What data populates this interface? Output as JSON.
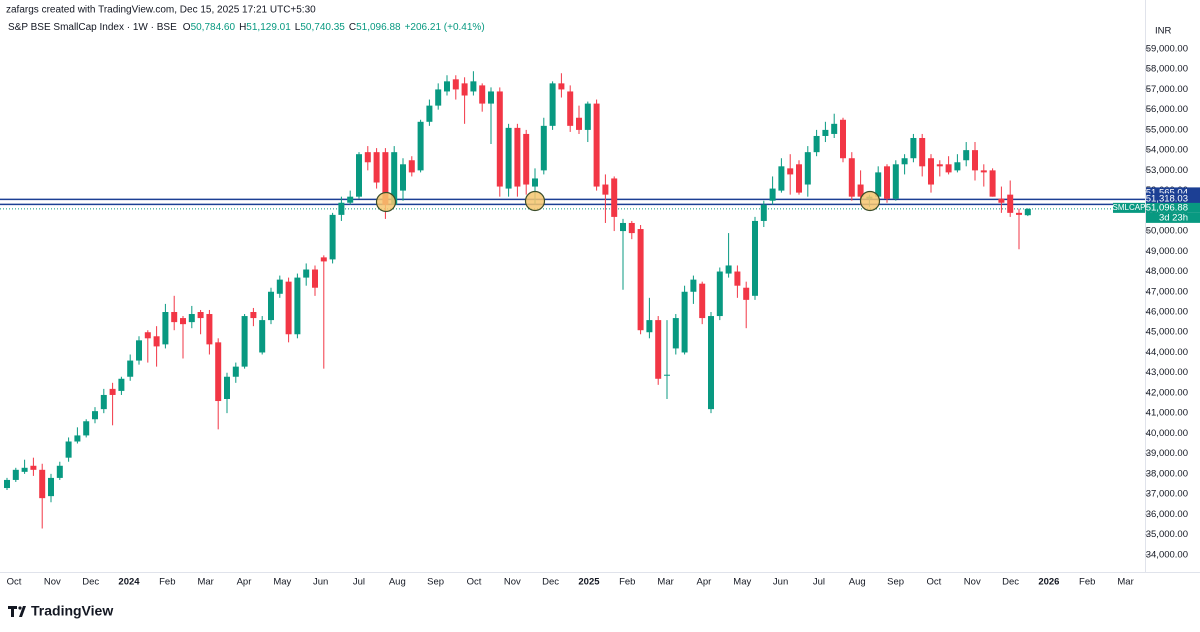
{
  "chart_data": {
    "type": "candlestick",
    "credit": "zafargs created with TradingView.com, Dec 15, 2025 17:21 UTC+5:30",
    "symbol": "S&P BSE SmallCap Index · 1W · BSE",
    "ohlc": [
      {
        "label": "O",
        "value": "50,784.60"
      },
      {
        "label": "H",
        "value": "51,129.01"
      },
      {
        "label": "L",
        "value": "50,740.35"
      },
      {
        "label": "C",
        "value": "51,096.88"
      }
    ],
    "change": "+206.21 (+0.41%)",
    "currency": "INR",
    "brand": "TradingView",
    "up_color": "#089981",
    "down_color": "#f23645",
    "ylim": [
      33150,
      61420
    ],
    "yticks": [
      {
        "value": 34000,
        "label": "34,000.00"
      },
      {
        "value": 35000,
        "label": "35,000.00"
      },
      {
        "value": 36000,
        "label": "36,000.00"
      },
      {
        "value": 37000,
        "label": "37,000.00"
      },
      {
        "value": 38000,
        "label": "38,000.00"
      },
      {
        "value": 39000,
        "label": "39,000.00"
      },
      {
        "value": 40000,
        "label": "40,000.00"
      },
      {
        "value": 41000,
        "label": "41,000.00"
      },
      {
        "value": 42000,
        "label": "42,000.00"
      },
      {
        "value": 43000,
        "label": "43,000.00"
      },
      {
        "value": 44000,
        "label": "44,000.00"
      },
      {
        "value": 45000,
        "label": "45,000.00"
      },
      {
        "value": 46000,
        "label": "46,000.00"
      },
      {
        "value": 47000,
        "label": "47,000.00"
      },
      {
        "value": 48000,
        "label": "48,000.00"
      },
      {
        "value": 49000,
        "label": "49,000.00"
      },
      {
        "value": 50000,
        "label": "50,000.00"
      },
      {
        "value": 51000,
        "label": "51,000.00"
      },
      {
        "value": 52000,
        "label": "52,000.00"
      },
      {
        "value": 53000,
        "label": "53,000.00"
      },
      {
        "value": 54000,
        "label": "54,000.00"
      },
      {
        "value": 55000,
        "label": "55,000.00"
      },
      {
        "value": 56000,
        "label": "56,000.00"
      },
      {
        "value": 57000,
        "label": "57,000.00"
      },
      {
        "value": 58000,
        "label": "58,000.00"
      },
      {
        "value": 59000,
        "label": "59,000.00"
      }
    ],
    "xtick_labels": [
      "Oct",
      "Nov",
      "Dec",
      "2024",
      "Feb",
      "Mar",
      "Apr",
      "May",
      "Jun",
      "Jul",
      "Aug",
      "Sep",
      "Oct",
      "Nov",
      "Dec",
      "2025",
      "Feb",
      "Mar",
      "Apr",
      "May",
      "Jun",
      "Jul",
      "Aug",
      "Sep",
      "Oct",
      "Nov",
      "Dec",
      "2026",
      "Feb",
      "Mar"
    ],
    "open": [
      37300,
      37700,
      38100,
      38400,
      38200,
      36900,
      37800,
      38800,
      39600,
      39900,
      40700,
      41200,
      42200,
      42100,
      42800,
      43600,
      45000,
      44800,
      44400,
      46000,
      45700,
      45500,
      46000,
      45900,
      44500,
      41700,
      42800,
      43300,
      46000,
      44000,
      45600,
      46900,
      47500,
      44900,
      47700,
      48100,
      48700,
      48600,
      50800,
      51400,
      51700,
      53900,
      53900,
      53900,
      51300,
      52000,
      53500,
      53000,
      55400,
      56200,
      56900,
      57500,
      57300,
      56900,
      57200,
      56300,
      56900,
      52100,
      55100,
      54800,
      52200,
      53000,
      55200,
      57300,
      56900,
      55600,
      55000,
      56300,
      52300,
      52600,
      50000,
      50400,
      50100,
      45000,
      45600,
      42900,
      44200,
      44000,
      47000,
      47400,
      41200,
      45800,
      47900,
      48000,
      47200,
      46800,
      50500,
      51500,
      52000,
      53100,
      53300,
      52300,
      53900,
      54700,
      54800,
      55500,
      53600,
      52300,
      51600,
      51700,
      53200,
      51600,
      53300,
      53600,
      54600,
      53600,
      53300,
      53300,
      53000,
      53500,
      54000,
      53000,
      53000,
      51600,
      51800,
      50900,
      50784.6
    ],
    "high": [
      37800,
      38300,
      38700,
      38800,
      38500,
      38000,
      38600,
      39800,
      40300,
      40700,
      41300,
      42200,
      42500,
      42800,
      43900,
      44800,
      45100,
      45300,
      46400,
      46800,
      45800,
      46300,
      46100,
      46100,
      44700,
      43000,
      43500,
      45900,
      46200,
      45800,
      47200,
      47800,
      47700,
      47900,
      48400,
      48300,
      48800,
      50900,
      51700,
      52000,
      53900,
      54200,
      54100,
      54100,
      54200,
      53600,
      53700,
      55500,
      56500,
      57300,
      57700,
      57700,
      57600,
      57900,
      57300,
      57100,
      57100,
      55300,
      55300,
      55000,
      53100,
      55600,
      57400,
      57800,
      57200,
      56200,
      56400,
      56500,
      52800,
      52700,
      50600,
      50500,
      50300,
      46700,
      45800,
      45600,
      45900,
      47300,
      47800,
      47500,
      46000,
      48200,
      49900,
      48300,
      47500,
      50700,
      51500,
      52700,
      53600,
      53800,
      53500,
      54200,
      55000,
      55400,
      55800,
      55600,
      53900,
      53000,
      51800,
      53200,
      53300,
      53500,
      53800,
      54800,
      54800,
      53800,
      53500,
      53700,
      53800,
      54400,
      54400,
      53300,
      53100,
      52200,
      52500,
      51100,
      51129.01
    ],
    "low": [
      37200,
      37600,
      38000,
      37900,
      35300,
      36600,
      37700,
      38600,
      39500,
      39800,
      40500,
      41000,
      40400,
      41900,
      42600,
      43400,
      43500,
      43300,
      44200,
      45100,
      43700,
      45200,
      44900,
      43900,
      40200,
      41000,
      42500,
      43200,
      45300,
      43900,
      45400,
      46700,
      44500,
      44700,
      47300,
      46800,
      43200,
      48400,
      50500,
      51300,
      51600,
      53000,
      52100,
      50600,
      51200,
      51500,
      52700,
      52900,
      55200,
      56000,
      56700,
      56500,
      55300,
      56700,
      55900,
      54300,
      51700,
      51700,
      51700,
      51800,
      51300,
      52800,
      55000,
      56600,
      54900,
      54800,
      54400,
      52000,
      50400,
      50000,
      47100,
      49600,
      44900,
      44700,
      42400,
      41700,
      43900,
      43900,
      46400,
      45400,
      41000,
      45600,
      47700,
      46700,
      45200,
      46600,
      50200,
      51300,
      51900,
      51800,
      51800,
      51700,
      53700,
      54400,
      54600,
      53400,
      51500,
      51300,
      51200,
      51500,
      51400,
      51500,
      52800,
      53400,
      52700,
      51900,
      52700,
      52800,
      52900,
      53200,
      52500,
      52200,
      51700,
      50900,
      50700,
      49100,
      50740.35
    ],
    "close": [
      37700,
      38200,
      38300,
      38200,
      36800,
      37800,
      38400,
      39600,
      39900,
      40600,
      41100,
      41900,
      41900,
      42700,
      43600,
      44600,
      44700,
      44300,
      46000,
      45500,
      45400,
      45900,
      45700,
      44400,
      41600,
      42800,
      43300,
      45800,
      45700,
      45600,
      47000,
      47600,
      44900,
      47700,
      48100,
      47200,
      48500,
      50800,
      51400,
      51700,
      53800,
      53400,
      52400,
      51300,
      53900,
      53300,
      52900,
      55400,
      56200,
      57000,
      57400,
      57000,
      56700,
      57400,
      56300,
      56900,
      52200,
      55100,
      52200,
      52300,
      52600,
      55200,
      57300,
      57000,
      55200,
      55000,
      56300,
      52200,
      51800,
      50700,
      50400,
      49900,
      45100,
      45600,
      42700,
      42900,
      45700,
      47000,
      47600,
      45700,
      45800,
      48000,
      48300,
      47300,
      46600,
      50500,
      51300,
      52100,
      53200,
      52800,
      51900,
      53900,
      54700,
      55000,
      55300,
      53600,
      51700,
      51700,
      51700,
      52900,
      51600,
      53300,
      53600,
      54600,
      53200,
      52300,
      53200,
      52900,
      53400,
      54000,
      53000,
      52900,
      51700,
      51400,
      50900,
      50800,
      51096.88
    ],
    "levels": [
      {
        "value": 51565.04,
        "label": "51,565.04",
        "color": "#1c3f94"
      },
      {
        "value": 51318.03,
        "label": "51,318.03",
        "color": "#1c3f94"
      }
    ],
    "last": {
      "value": 51096.88,
      "label": "51,096.88",
      "name": "SMLCAP",
      "countdown": "3d 23h",
      "color": "#089981"
    }
  }
}
